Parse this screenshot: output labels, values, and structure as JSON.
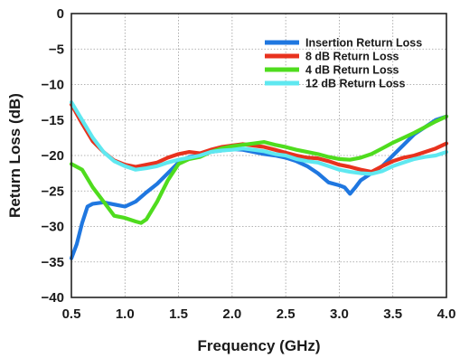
{
  "chart_data": {
    "type": "line",
    "title": "",
    "xlabel": "Frequency (GHz)",
    "ylabel": "Return Loss (dB)",
    "xlim": [
      0.5,
      4.0
    ],
    "ylim": [
      -40,
      0
    ],
    "xticks": [
      0.5,
      1.0,
      1.5,
      2.0,
      2.5,
      3.0,
      3.5,
      4.0
    ],
    "xtick_labels": [
      "0.5",
      "1.0",
      "1.5",
      "2.0",
      "2.5",
      "3.0",
      "3.5",
      "4.0"
    ],
    "yticks": [
      0,
      -5,
      -10,
      -15,
      -20,
      -25,
      -30,
      -35,
      -40
    ],
    "ytick_labels": [
      "0",
      "−5",
      "−10",
      "−15",
      "−20",
      "−25",
      "−30",
      "−35",
      "−40"
    ],
    "grid": true,
    "legend_position": "top-right",
    "series": [
      {
        "name": "Insertion Return Loss",
        "color": "#1f77e0",
        "x": [
          0.5,
          0.55,
          0.6,
          0.65,
          0.7,
          0.8,
          0.9,
          1.0,
          1.1,
          1.2,
          1.3,
          1.4,
          1.5,
          1.6,
          1.7,
          1.8,
          1.9,
          2.0,
          2.1,
          2.2,
          2.3,
          2.4,
          2.5,
          2.6,
          2.7,
          2.8,
          2.9,
          3.0,
          3.05,
          3.1,
          3.15,
          3.2,
          3.3,
          3.4,
          3.5,
          3.6,
          3.7,
          3.8,
          3.9,
          4.0
        ],
        "y": [
          -34.5,
          -32.5,
          -29.5,
          -27.2,
          -26.8,
          -26.6,
          -26.9,
          -27.2,
          -26.5,
          -25.2,
          -24.0,
          -22.5,
          -21.0,
          -20.2,
          -20.0,
          -19.5,
          -19.3,
          -19.1,
          -19.2,
          -19.5,
          -19.8,
          -20.0,
          -20.3,
          -20.8,
          -21.5,
          -22.5,
          -23.8,
          -24.2,
          -24.5,
          -25.4,
          -24.5,
          -23.5,
          -22.5,
          -21.5,
          -20.0,
          -18.5,
          -17.0,
          -16.0,
          -15.0,
          -14.5
        ]
      },
      {
        "name": "8 dB Return Loss",
        "color": "#e8321e",
        "x": [
          0.5,
          0.6,
          0.7,
          0.8,
          0.9,
          1.0,
          1.1,
          1.2,
          1.3,
          1.4,
          1.5,
          1.6,
          1.7,
          1.8,
          1.9,
          2.0,
          2.1,
          2.2,
          2.3,
          2.4,
          2.5,
          2.6,
          2.7,
          2.8,
          2.9,
          3.0,
          3.1,
          3.2,
          3.3,
          3.4,
          3.5,
          3.6,
          3.7,
          3.8,
          3.9,
          4.0
        ],
        "y": [
          -12.8,
          -15.5,
          -18.0,
          -19.5,
          -20.7,
          -21.3,
          -21.6,
          -21.3,
          -21.0,
          -20.3,
          -19.8,
          -19.5,
          -19.7,
          -19.2,
          -18.8,
          -18.6,
          -18.4,
          -18.6,
          -18.8,
          -19.2,
          -19.6,
          -20.0,
          -20.3,
          -20.4,
          -20.8,
          -21.3,
          -21.6,
          -22.0,
          -22.3,
          -21.5,
          -20.8,
          -20.3,
          -20.0,
          -19.5,
          -19.0,
          -18.3
        ]
      },
      {
        "name": "4 dB Return Loss",
        "color": "#4fdc1e",
        "x": [
          0.5,
          0.6,
          0.7,
          0.8,
          0.9,
          1.0,
          1.1,
          1.15,
          1.2,
          1.3,
          1.4,
          1.5,
          1.6,
          1.7,
          1.8,
          1.9,
          2.0,
          2.1,
          2.2,
          2.3,
          2.4,
          2.5,
          2.6,
          2.7,
          2.8,
          2.9,
          3.0,
          3.1,
          3.2,
          3.3,
          3.4,
          3.5,
          3.6,
          3.7,
          3.8,
          3.9,
          4.0
        ],
        "y": [
          -21.2,
          -22.0,
          -24.5,
          -26.5,
          -28.5,
          -28.8,
          -29.3,
          -29.5,
          -29.0,
          -26.5,
          -23.5,
          -21.2,
          -20.5,
          -20.2,
          -19.5,
          -19.0,
          -18.7,
          -18.5,
          -18.3,
          -18.1,
          -18.5,
          -18.8,
          -19.2,
          -19.5,
          -19.8,
          -20.2,
          -20.5,
          -20.6,
          -20.3,
          -19.8,
          -19.0,
          -18.2,
          -17.5,
          -16.8,
          -16.0,
          -15.2,
          -14.5
        ]
      },
      {
        "name": "12 dB Return Loss",
        "color": "#5fe8f0",
        "x": [
          0.5,
          0.6,
          0.7,
          0.8,
          0.9,
          1.0,
          1.1,
          1.2,
          1.3,
          1.4,
          1.5,
          1.6,
          1.7,
          1.8,
          1.9,
          2.0,
          2.1,
          2.2,
          2.3,
          2.4,
          2.5,
          2.6,
          2.7,
          2.8,
          2.9,
          3.0,
          3.1,
          3.2,
          3.3,
          3.4,
          3.5,
          3.6,
          3.7,
          3.8,
          3.9,
          4.0
        ],
        "y": [
          -12.5,
          -15.0,
          -17.5,
          -19.5,
          -20.8,
          -21.5,
          -22.0,
          -21.8,
          -21.5,
          -21.0,
          -20.6,
          -20.3,
          -20.0,
          -19.5,
          -19.3,
          -19.2,
          -19.0,
          -19.2,
          -19.4,
          -19.8,
          -20.0,
          -20.5,
          -20.8,
          -21.0,
          -21.5,
          -22.0,
          -22.3,
          -22.5,
          -22.6,
          -22.2,
          -21.5,
          -21.0,
          -20.5,
          -20.2,
          -20.0,
          -19.5
        ]
      }
    ]
  }
}
